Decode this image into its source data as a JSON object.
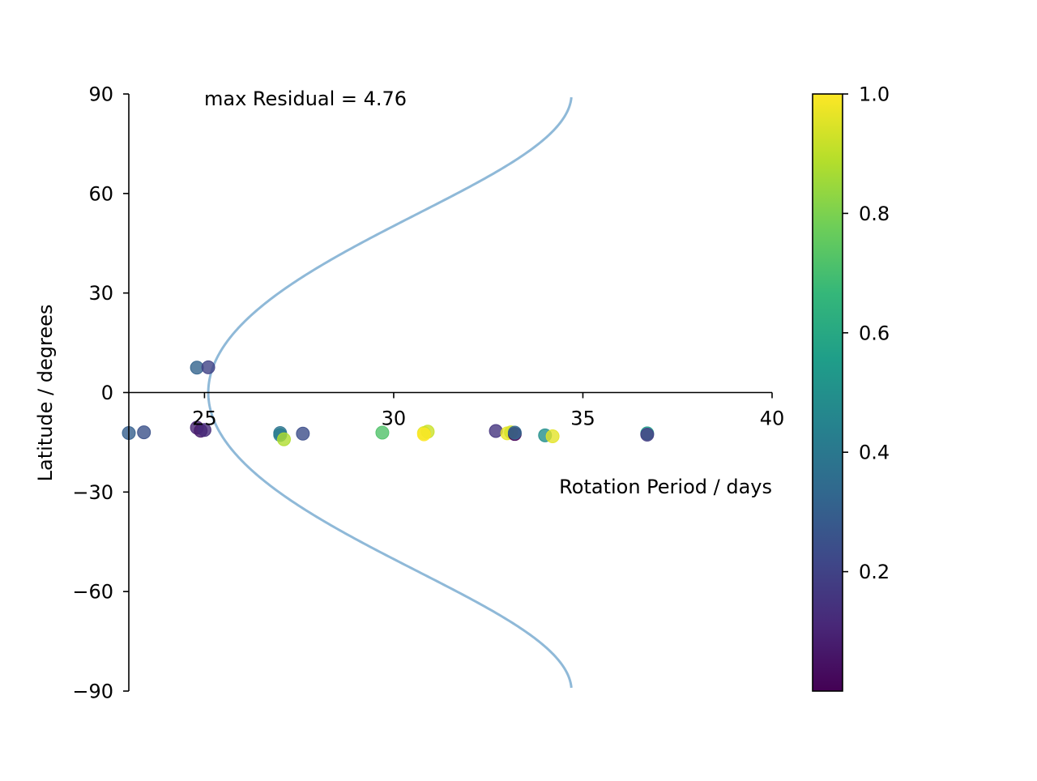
{
  "chart_data": {
    "type": "scatter",
    "title": "",
    "annotation": "max Residual = 4.76",
    "xlabel": "Rotation Period / days",
    "ylabel": "Latitude / degrees",
    "xlim": [
      23,
      40
    ],
    "ylim": [
      -90,
      90
    ],
    "xticks": [
      25,
      30,
      35,
      40
    ],
    "yticks": [
      -90,
      -60,
      -30,
      0,
      30,
      60,
      90
    ],
    "x_tick_labels": [
      "25",
      "30",
      "35",
      "40"
    ],
    "y_tick_labels": [
      "−90",
      "−60",
      "−30",
      "0",
      "30",
      "60",
      "90"
    ],
    "grid": false,
    "spines": "centered",
    "colormap": "viridis",
    "colorbar": {
      "min": 0.0,
      "max": 1.0,
      "ticks": [
        0.2,
        0.4,
        0.6,
        0.8,
        1.0
      ],
      "tick_labels": [
        "0.2",
        "0.4",
        "0.6",
        "0.8",
        "1.0"
      ],
      "colors": [
        "#440154",
        "#482878",
        "#3e4989",
        "#31688e",
        "#26828e",
        "#1f9e89",
        "#35b779",
        "#6ece58",
        "#b5de2b",
        "#fde725"
      ]
    },
    "curve": {
      "name": "differential rotation fit",
      "color": "#8fb9d8",
      "equator_period": 25.1,
      "pole_period": 34.7,
      "latitude_range": [
        -89,
        89
      ]
    },
    "points": [
      {
        "x": 23.0,
        "y": -12.2,
        "c": 0.3
      },
      {
        "x": 23.4,
        "y": -12.0,
        "c": 0.25
      },
      {
        "x": 24.8,
        "y": 7.5,
        "c": 0.32
      },
      {
        "x": 25.1,
        "y": 7.6,
        "c": 0.2
      },
      {
        "x": 24.8,
        "y": -10.6,
        "c": 0.1
      },
      {
        "x": 24.9,
        "y": -11.5,
        "c": 0.07
      },
      {
        "x": 25.0,
        "y": -11.3,
        "c": 0.12
      },
      {
        "x": 27.0,
        "y": -12.2,
        "c": 0.38
      },
      {
        "x": 27.0,
        "y": -12.8,
        "c": 0.42
      },
      {
        "x": 27.1,
        "y": -14.1,
        "c": 0.88
      },
      {
        "x": 27.6,
        "y": -12.4,
        "c": 0.24
      },
      {
        "x": 29.7,
        "y": -12.1,
        "c": 0.72
      },
      {
        "x": 30.8,
        "y": -12.2,
        "c": 0.95
      },
      {
        "x": 30.9,
        "y": -11.8,
        "c": 0.92
      },
      {
        "x": 30.8,
        "y": -12.6,
        "c": 1.0
      },
      {
        "x": 32.7,
        "y": -11.6,
        "c": 0.15
      },
      {
        "x": 33.0,
        "y": -12.3,
        "c": 0.97
      },
      {
        "x": 33.1,
        "y": -12.0,
        "c": 0.94
      },
      {
        "x": 33.2,
        "y": -12.5,
        "c": 0.0
      },
      {
        "x": 33.2,
        "y": -12.1,
        "c": 0.33
      },
      {
        "x": 34.0,
        "y": -12.9,
        "c": 0.5
      },
      {
        "x": 34.2,
        "y": -13.2,
        "c": 0.96
      },
      {
        "x": 36.7,
        "y": -12.3,
        "c": 0.55
      },
      {
        "x": 36.7,
        "y": -12.7,
        "c": 0.18
      }
    ]
  }
}
